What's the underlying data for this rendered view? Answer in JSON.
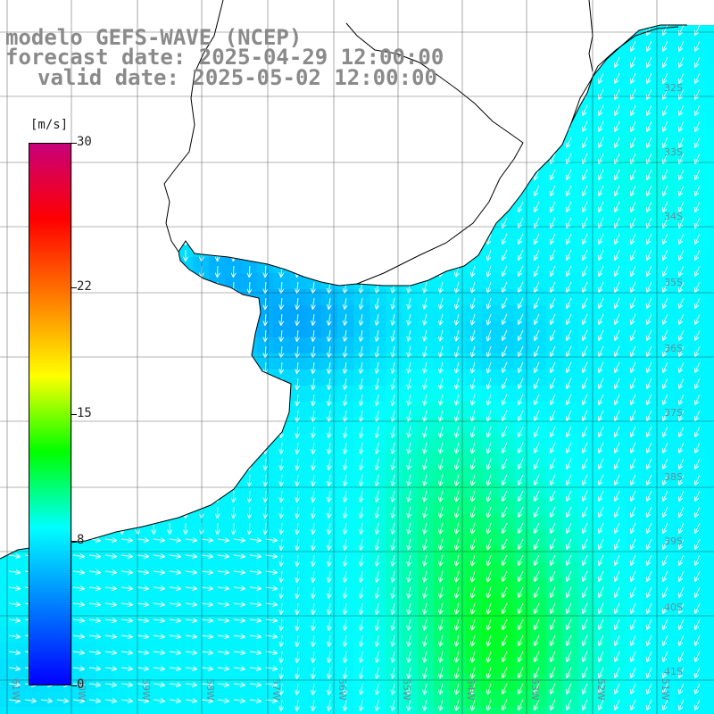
{
  "title": {
    "model": "modelo GEFS-WAVE (NCEP)",
    "forecast": "forecast date: 2025-04-29 12:00:00",
    "valid": "valid date: 2025-05-02 12:00:00"
  },
  "colorbar": {
    "unit": "[m/s]",
    "ticks": [
      "30",
      "22",
      "15",
      "8",
      "0"
    ],
    "tick_values": [
      30,
      22,
      15,
      8,
      0
    ],
    "range": [
      0,
      30
    ],
    "colors": [
      "#0000ff",
      "#0078ff",
      "#00ffff",
      "#00ff00",
      "#ffff00",
      "#ff8000",
      "#ff0000",
      "#c8007a"
    ]
  },
  "map": {
    "land_color": "#ffffff",
    "grid": true,
    "lat_labels": [
      "32S",
      "33S",
      "34S",
      "35S",
      "36S",
      "37S",
      "38S",
      "39S",
      "40S",
      "41S"
    ],
    "lon_labels": [
      "61W",
      "60W",
      "59W",
      "58W",
      "57W",
      "56W",
      "55W",
      "54W",
      "53W",
      "52W",
      "51W"
    ]
  }
}
